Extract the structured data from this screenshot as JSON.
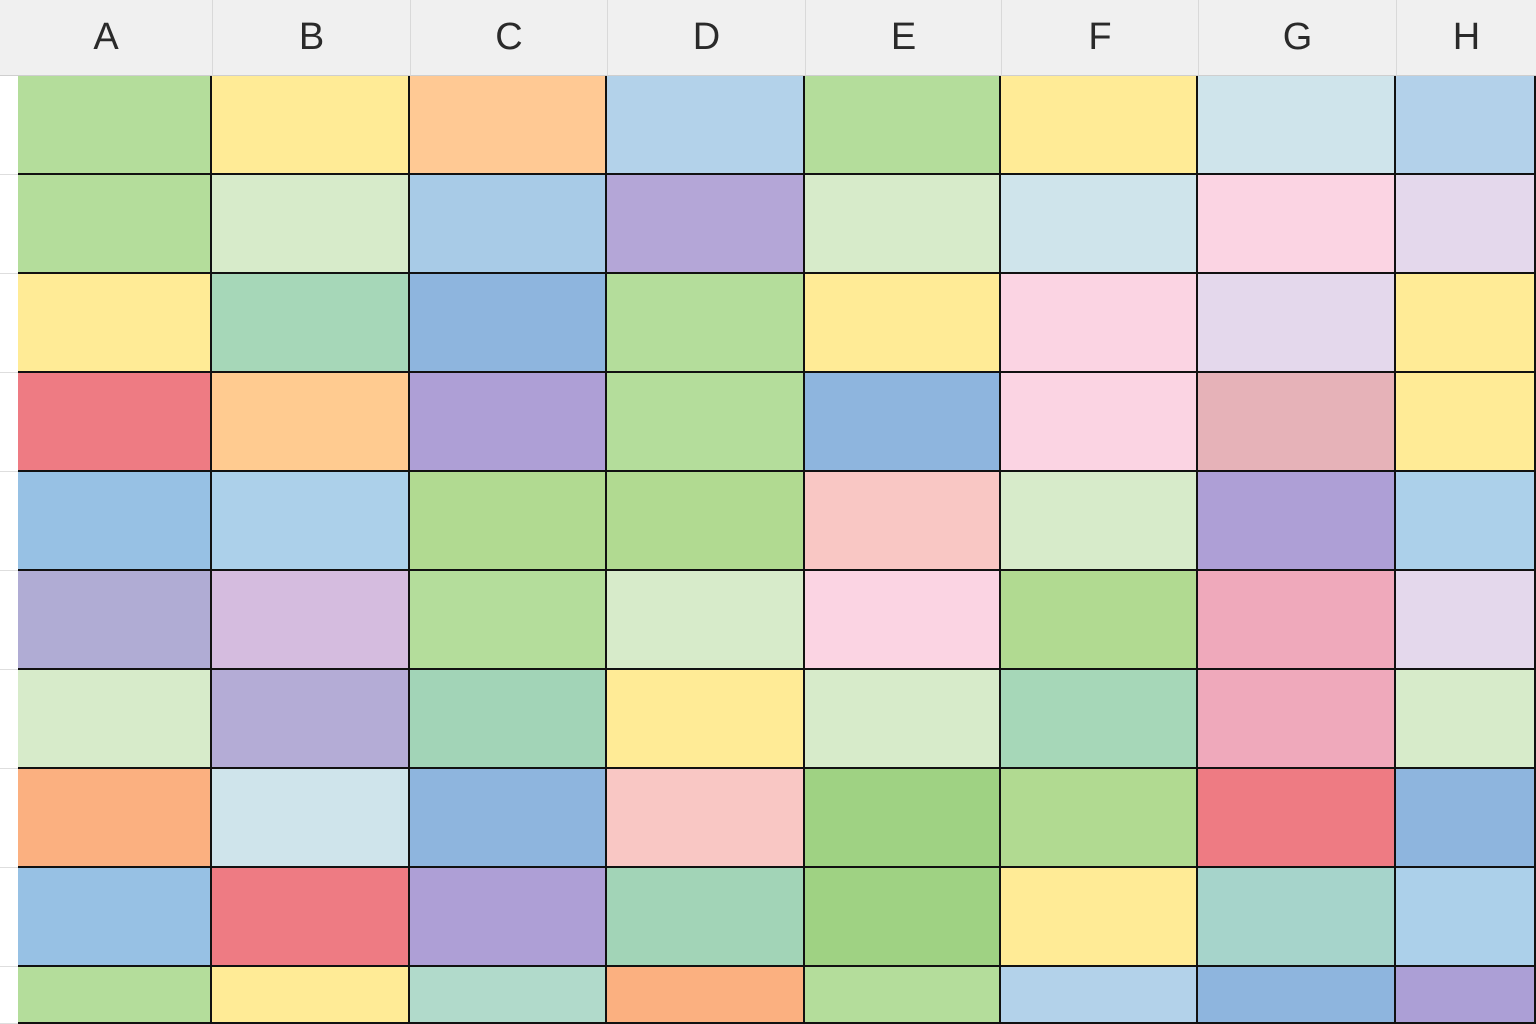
{
  "columns": [
    "A",
    "B",
    "C",
    "D",
    "E",
    "F",
    "G",
    "H"
  ],
  "rows": [
    {
      "cells": [
        "#b4dd9b",
        "#ffeb96",
        "#ffc994",
        "#b3d2ea",
        "#b4dd9b",
        "#ffeb96",
        "#cfe4eb",
        "#b3d1ea"
      ]
    },
    {
      "cells": [
        "#b4dd9b",
        "#d7ebca",
        "#a8cbe7",
        "#b4a6d7",
        "#d7ebca",
        "#cfe4eb",
        "#fbd4e3",
        "#e4d8ec"
      ]
    },
    {
      "cells": [
        "#ffeb96",
        "#a6d7b8",
        "#8eb5de",
        "#b4dd9b",
        "#ffeb96",
        "#fbd4e3",
        "#e4d8ec",
        "#ffeb96"
      ]
    },
    {
      "cells": [
        "#ee7b83",
        "#ffcb90",
        "#ae9fd6",
        "#b4dd9b",
        "#8eb5de",
        "#fbd4e3",
        "#e6b2b8",
        "#ffeb96"
      ]
    },
    {
      "cells": [
        "#97c1e4",
        "#acd0ea",
        "#b1da91",
        "#b1da91",
        "#f9c7c4",
        "#d7ebca",
        "#ae9fd6",
        "#acd0ea"
      ]
    },
    {
      "cells": [
        "#b0acd4",
        "#d5bcdf",
        "#b4dd9b",
        "#d7ebca",
        "#fbd4e3",
        "#b1da91",
        "#efa9bb",
        "#e4d8ec"
      ]
    },
    {
      "cells": [
        "#d7ebca",
        "#b4acd6",
        "#a2d4b7",
        "#ffeb96",
        "#d7ebca",
        "#a6d7b8",
        "#efa9bb",
        "#d7ebca"
      ]
    },
    {
      "cells": [
        "#fbb080",
        "#cfe4eb",
        "#8eb5de",
        "#f9c7c4",
        "#9fd283",
        "#b1da91",
        "#ee7b83",
        "#8eb5de"
      ]
    },
    {
      "cells": [
        "#97c1e4",
        "#ee7b83",
        "#ae9fd6",
        "#a2d4b7",
        "#9fd283",
        "#ffeb96",
        "#a6d4cb",
        "#acd0ea"
      ]
    },
    {
      "cells": [
        "#b4dd9b",
        "#ffeb96",
        "#b1dacb",
        "#fbb080",
        "#b4dd9b",
        "#b3d2ea",
        "#8eb5de",
        "#ac9fd6"
      ]
    }
  ]
}
